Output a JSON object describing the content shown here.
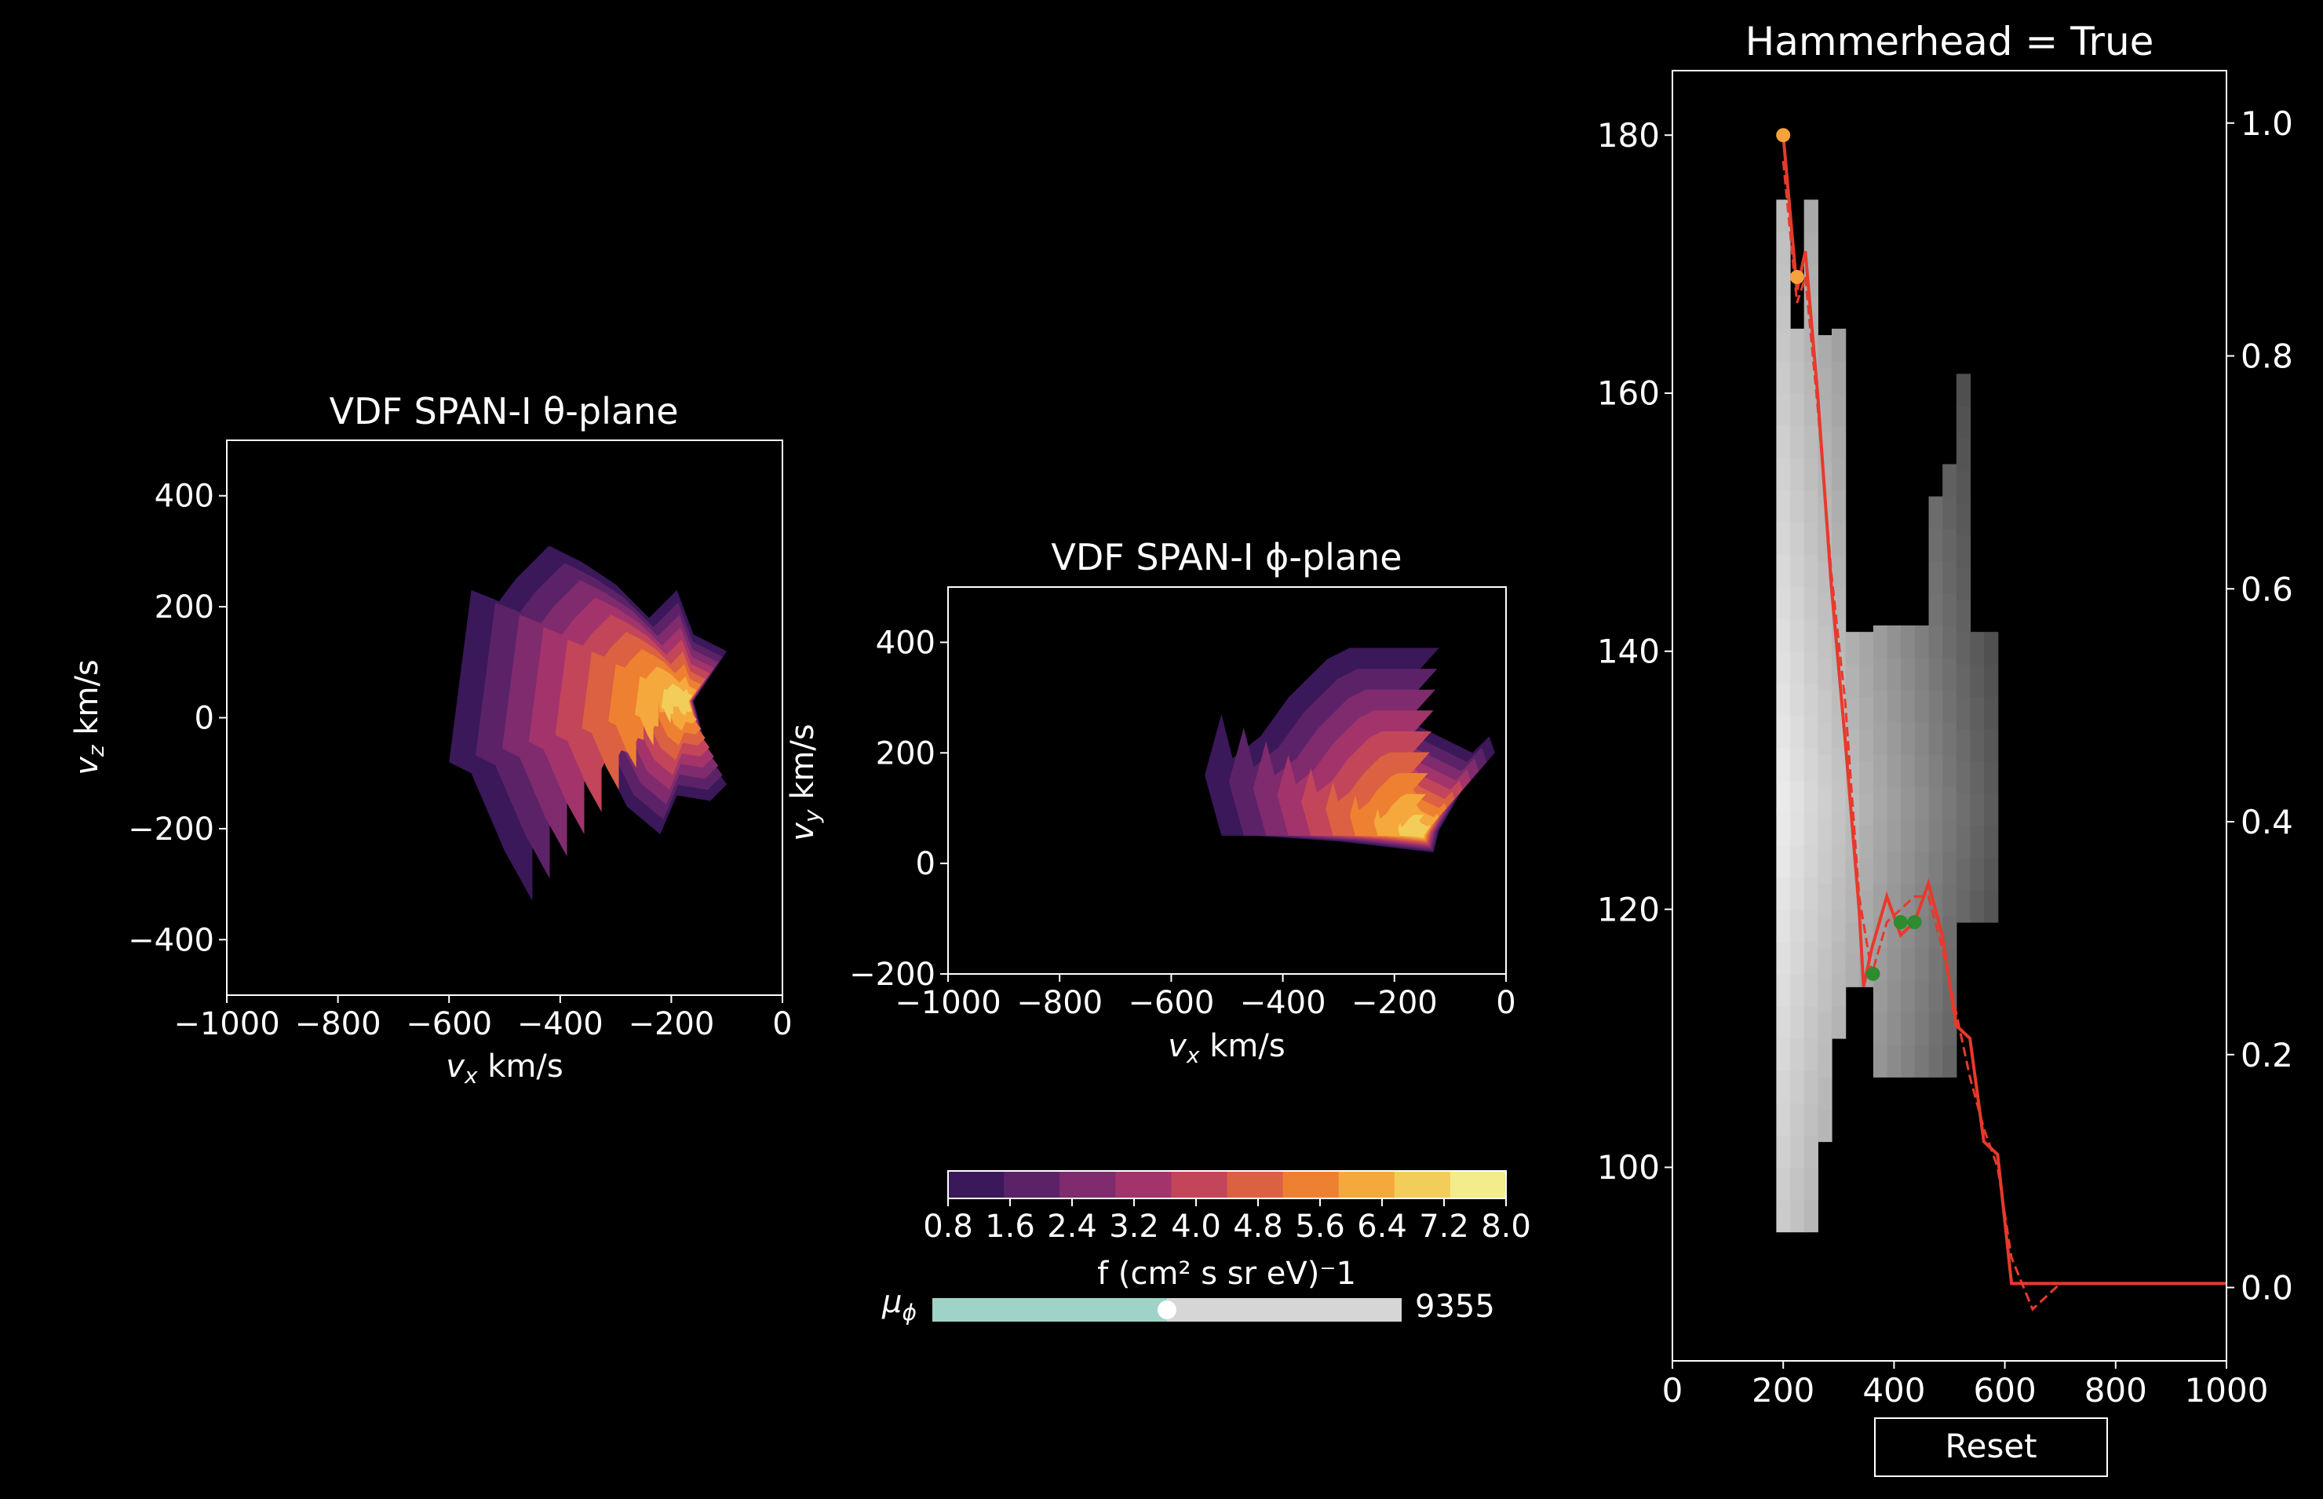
{
  "colors": {
    "background": "#000000",
    "foreground": "#ffffff",
    "fit_line": "#e8392c",
    "orange_points": "#f7a23b",
    "green_points": "#2e8b2e",
    "slider_fill": "#9fd3c7",
    "slider_track": "#d6d6d6",
    "inferno_levels": [
      "#3b1859",
      "#5c2268",
      "#7f2b6e",
      "#a2346b",
      "#c2455a",
      "#dc6042",
      "#ee8131",
      "#f5a83b",
      "#f3cd5a",
      "#f2ec8a"
    ]
  },
  "slider": {
    "label": "μ_φ",
    "label_main": "μ",
    "label_sub": "ϕ",
    "value_text": "9355",
    "fraction": 0.5
  },
  "reset_label": "Reset",
  "colorbar": {
    "ticks": [
      "0.8",
      "1.6",
      "2.4",
      "3.2",
      "4.0",
      "4.8",
      "5.6",
      "6.4",
      "7.2",
      "8.0"
    ],
    "label": "f (cm² s sr eV)⁻1"
  },
  "chart_data": [
    {
      "type": "heatmap",
      "title": "VDF SPAN-I θ-plane",
      "xlabel": "v_x km/s",
      "ylabel": "v_z km/s",
      "xlim": [
        -1000,
        0
      ],
      "ylim": [
        -500,
        500
      ],
      "xticks": [
        "−1000",
        "−800",
        "−600",
        "−400",
        "−200",
        "0"
      ],
      "yticks": [
        "−400",
        "−200",
        "0",
        "200",
        "400"
      ],
      "xtick_values": [
        -1000,
        -800,
        -600,
        -400,
        -200,
        0
      ],
      "ytick_values": [
        -400,
        -200,
        0,
        200,
        400
      ],
      "core": [
        -170,
        30
      ],
      "levels": [
        0.8,
        1.6,
        2.4,
        3.2,
        4.0,
        4.8,
        5.6,
        6.4,
        7.2,
        8.0
      ],
      "outline": [
        [
          -600,
          -80
        ],
        [
          -560,
          230
        ],
        [
          -510,
          210
        ],
        [
          -480,
          250
        ],
        [
          -420,
          310
        ],
        [
          -360,
          280
        ],
        [
          -300,
          240
        ],
        [
          -240,
          180
        ],
        [
          -190,
          230
        ],
        [
          -160,
          150
        ],
        [
          -100,
          120
        ],
        [
          -160,
          30
        ],
        [
          -130,
          -80
        ],
        [
          -100,
          -120
        ],
        [
          -130,
          -150
        ],
        [
          -190,
          -140
        ],
        [
          -220,
          -210
        ],
        [
          -280,
          -160
        ],
        [
          -330,
          -60
        ],
        [
          -400,
          -60
        ],
        [
          -410,
          30
        ],
        [
          -410,
          -180
        ],
        [
          -440,
          -170
        ],
        [
          -450,
          -190
        ],
        [
          -450,
          -330
        ],
        [
          -500,
          -240
        ],
        [
          -560,
          -100
        ]
      ]
    },
    {
      "type": "heatmap",
      "title": "VDF SPAN-I ϕ-plane",
      "xlabel": "v_x km/s",
      "ylabel": "v_y km/s",
      "xlim": [
        -1000,
        0
      ],
      "ylim": [
        -200,
        500
      ],
      "xticks": [
        "−1000",
        "−800",
        "−600",
        "−400",
        "−200",
        "0"
      ],
      "yticks": [
        "−200",
        "0",
        "200",
        "400"
      ],
      "xtick_values": [
        -1000,
        -800,
        -600,
        -400,
        -200,
        0
      ],
      "ytick_values": [
        -200,
        0,
        200,
        400
      ],
      "core": [
        -150,
        50
      ],
      "levels": [
        0.8,
        1.6,
        2.4,
        3.2,
        4.0,
        4.8,
        5.6,
        6.4,
        7.2,
        8.0
      ],
      "outline": [
        [
          -540,
          160
        ],
        [
          -510,
          270
        ],
        [
          -490,
          190
        ],
        [
          -440,
          230
        ],
        [
          -390,
          300
        ],
        [
          -320,
          370
        ],
        [
          -280,
          390
        ],
        [
          -120,
          390
        ],
        [
          -200,
          300
        ],
        [
          -160,
          250
        ],
        [
          -100,
          220
        ],
        [
          -60,
          200
        ],
        [
          -30,
          230
        ],
        [
          -20,
          200
        ],
        [
          -80,
          130
        ],
        [
          -120,
          60
        ],
        [
          -130,
          20
        ],
        [
          -300,
          40
        ],
        [
          -450,
          50
        ],
        [
          -510,
          50
        ]
      ]
    },
    {
      "type": "heatmap",
      "title": "Hammerhead = True",
      "xlim": [
        0,
        1000
      ],
      "ylim": [
        85,
        185
      ],
      "y2lim": [
        -0.063,
        1.045
      ],
      "xticks": [
        "0",
        "200",
        "400",
        "600",
        "800",
        "1000"
      ],
      "yticks": [
        "100",
        "120",
        "140",
        "160",
        "180"
      ],
      "y2ticks": [
        "0.0",
        "0.2",
        "0.4",
        "0.6",
        "0.8",
        "1.0"
      ],
      "xtick_values": [
        0,
        200,
        400,
        600,
        800,
        1000
      ],
      "ytick_values": [
        100,
        120,
        140,
        160,
        180
      ],
      "y2tick_values": [
        0,
        0.2,
        0.4,
        0.6,
        0.8,
        1.0
      ],
      "column_ranges": [
        {
          "x0": 187.5,
          "x1": 212.5,
          "y0": 95,
          "y1": 175
        },
        {
          "x0": 212.5,
          "x1": 237.5,
          "y0": 95,
          "y1": 163
        },
        {
          "x0": 237.5,
          "x1": 262.5,
          "y0": 95,
          "y1": 175
        },
        {
          "x0": 262.5,
          "x1": 287.5,
          "y0": 102,
          "y1": 163
        },
        {
          "x0": 287.5,
          "x1": 312.5,
          "y0": 110,
          "y1": 163
        },
        {
          "x0": 312.5,
          "x1": 337.5,
          "y0": 114,
          "y1": 141
        },
        {
          "x0": 337.5,
          "x1": 362.5,
          "y0": 114,
          "y1": 141
        },
        {
          "x0": 362.5,
          "x1": 387.5,
          "y0": 107,
          "y1": 141
        },
        {
          "x0": 387.5,
          "x1": 412.5,
          "y0": 107,
          "y1": 141
        },
        {
          "x0": 412.5,
          "x1": 437.5,
          "y0": 107,
          "y1": 141
        },
        {
          "x0": 437.5,
          "x1": 462.5,
          "y0": 107,
          "y1": 141
        },
        {
          "x0": 462.5,
          "x1": 487.5,
          "y0": 107,
          "y1": 150
        },
        {
          "x0": 487.5,
          "x1": 512.5,
          "y0": 107,
          "y1": 153
        },
        {
          "x0": 512.5,
          "x1": 537.5,
          "y0": 119,
          "y1": 160
        },
        {
          "x0": 537.5,
          "x1": 562.5,
          "y0": 119,
          "y1": 141
        },
        {
          "x0": 562.5,
          "x1": 587.5,
          "y0": 119,
          "y1": 141
        }
      ],
      "solid_line": [
        [
          200,
          180
        ],
        [
          225,
          168
        ],
        [
          240,
          171
        ],
        [
          262,
          160
        ],
        [
          287,
          145
        ],
        [
          312,
          133
        ],
        [
          337,
          120
        ],
        [
          345,
          114
        ],
        [
          360,
          117
        ],
        [
          387,
          121
        ],
        [
          412,
          118
        ],
        [
          437,
          119
        ],
        [
          462,
          122
        ],
        [
          487,
          118
        ],
        [
          512,
          111
        ],
        [
          537,
          110
        ],
        [
          562,
          102
        ],
        [
          587,
          101
        ],
        [
          612,
          91
        ],
        [
          637,
          91
        ],
        [
          1000,
          91
        ]
      ],
      "dashed_line": [
        [
          200,
          178
        ],
        [
          225,
          167
        ],
        [
          240,
          169
        ],
        [
          262,
          159
        ],
        [
          287,
          146
        ],
        [
          312,
          136
        ],
        [
          337,
          121
        ],
        [
          360,
          115
        ],
        [
          387,
          119
        ],
        [
          412,
          120
        ],
        [
          437,
          121
        ],
        [
          462,
          121
        ],
        [
          487,
          117
        ],
        [
          512,
          112
        ],
        [
          537,
          107
        ],
        [
          562,
          103
        ],
        [
          587,
          100
        ],
        [
          612,
          93
        ],
        [
          650,
          89
        ],
        [
          700,
          91
        ],
        [
          1000,
          91
        ]
      ],
      "orange_points": [
        [
          200,
          180
        ],
        [
          225,
          169
        ]
      ],
      "green_points": [
        [
          362,
          115
        ],
        [
          412,
          119
        ],
        [
          437,
          119
        ]
      ]
    }
  ]
}
